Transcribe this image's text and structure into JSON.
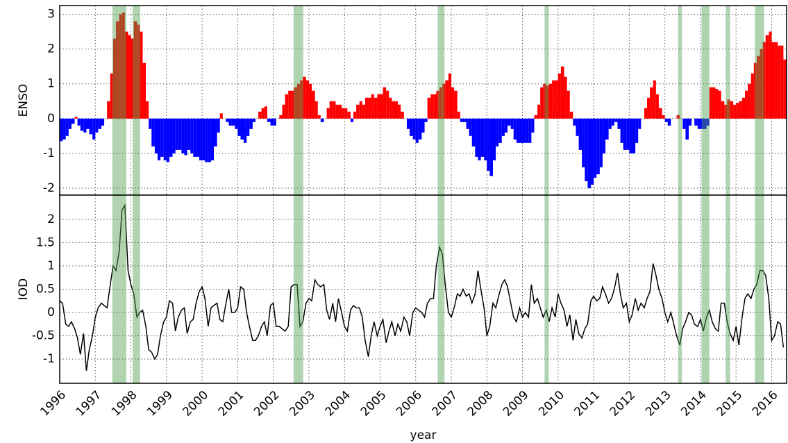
{
  "chart_data": [
    {
      "type": "bar",
      "ylabel": "ENSO",
      "x": [
        1996,
        1996.08,
        1996.17,
        1996.25,
        1996.33,
        1996.42,
        1996.5,
        1996.58,
        1996.67,
        1996.75,
        1996.83,
        1996.92,
        1997,
        1997.08,
        1997.17,
        1997.25,
        1997.33,
        1997.42,
        1997.5,
        1997.58,
        1997.67,
        1997.75,
        1997.83,
        1997.92,
        1998,
        1998.08,
        1998.17,
        1998.25,
        1998.33,
        1998.42,
        1998.5,
        1998.58,
        1998.67,
        1998.75,
        1998.83,
        1998.92,
        1999,
        1999.08,
        1999.17,
        1999.25,
        1999.33,
        1999.42,
        1999.5,
        1999.58,
        1999.67,
        1999.75,
        1999.83,
        1999.92,
        2000,
        2000.08,
        2000.17,
        2000.25,
        2000.33,
        2000.42,
        2000.5,
        2000.58,
        2000.67,
        2000.75,
        2000.83,
        2000.92,
        2001,
        2001.08,
        2001.17,
        2001.25,
        2001.33,
        2001.42,
        2001.5,
        2001.58,
        2001.67,
        2001.75,
        2001.83,
        2001.92,
        2002,
        2002.08,
        2002.17,
        2002.25,
        2002.33,
        2002.42,
        2002.5,
        2002.58,
        2002.67,
        2002.75,
        2002.83,
        2002.92,
        2003,
        2003.08,
        2003.17,
        2003.25,
        2003.33,
        2003.42,
        2003.5,
        2003.58,
        2003.67,
        2003.75,
        2003.83,
        2003.92,
        2004,
        2004.08,
        2004.17,
        2004.25,
        2004.33,
        2004.42,
        2004.5,
        2004.58,
        2004.67,
        2004.75,
        2004.83,
        2004.92,
        2005,
        2005.08,
        2005.17,
        2005.25,
        2005.33,
        2005.42,
        2005.5,
        2005.58,
        2005.67,
        2005.75,
        2005.83,
        2005.92,
        2006,
        2006.08,
        2006.17,
        2006.25,
        2006.33,
        2006.42,
        2006.5,
        2006.58,
        2006.67,
        2006.75,
        2006.83,
        2006.92,
        2007,
        2007.08,
        2007.17,
        2007.25,
        2007.33,
        2007.42,
        2007.5,
        2007.58,
        2007.67,
        2007.75,
        2007.83,
        2007.92,
        2008,
        2008.08,
        2008.17,
        2008.25,
        2008.33,
        2008.42,
        2008.5,
        2008.58,
        2008.67,
        2008.75,
        2008.83,
        2008.92,
        2009,
        2009.08,
        2009.17,
        2009.25,
        2009.33,
        2009.42,
        2009.5,
        2009.58,
        2009.67,
        2009.75,
        2009.83,
        2009.92,
        2010,
        2010.08,
        2010.17,
        2010.25,
        2010.33,
        2010.42,
        2010.5,
        2010.58,
        2010.67,
        2010.75,
        2010.83,
        2010.92,
        2011,
        2011.08,
        2011.17,
        2011.25,
        2011.33,
        2011.42,
        2011.5,
        2011.58,
        2011.67,
        2011.75,
        2011.83,
        2011.92,
        2012,
        2012.08,
        2012.17,
        2012.25,
        2012.33,
        2012.42,
        2012.5,
        2012.58,
        2012.67,
        2012.75,
        2012.83,
        2012.92,
        2013,
        2013.08,
        2013.17,
        2013.25,
        2013.33,
        2013.42,
        2013.5,
        2013.58,
        2013.67,
        2013.75,
        2013.83,
        2013.92,
        2014,
        2014.08,
        2014.17,
        2014.25,
        2014.33,
        2014.42,
        2014.5,
        2014.58,
        2014.67,
        2014.75,
        2014.83,
        2014.92,
        2015,
        2015.08,
        2015.17,
        2015.25,
        2015.33,
        2015.42,
        2015.5,
        2015.58,
        2015.67,
        2015.75,
        2015.83,
        2015.92,
        2016,
        2016.08,
        2016.17,
        2016.25,
        2016.33
      ],
      "values": [
        -0.65,
        -0.6,
        -0.5,
        -0.3,
        -0.15,
        0.05,
        -0.2,
        -0.35,
        -0.4,
        -0.3,
        -0.45,
        -0.6,
        -0.4,
        -0.3,
        -0.2,
        0.0,
        0.5,
        1.3,
        2.3,
        2.8,
        3.0,
        3.05,
        2.5,
        2.4,
        2.3,
        2.8,
        2.7,
        2.5,
        1.6,
        0.5,
        -0.3,
        -0.8,
        -1.0,
        -1.2,
        -1.1,
        -1.2,
        -1.25,
        -1.1,
        -1.0,
        -0.9,
        -0.9,
        -1.0,
        -1.05,
        -0.9,
        -1.0,
        -1.1,
        -1.1,
        -1.2,
        -1.2,
        -1.25,
        -1.25,
        -1.2,
        -0.8,
        -0.4,
        0.15,
        0.0,
        -0.1,
        -0.2,
        -0.2,
        -0.3,
        -0.5,
        -0.6,
        -0.7,
        -0.5,
        -0.3,
        -0.1,
        0.0,
        0.2,
        0.3,
        0.35,
        -0.1,
        -0.2,
        -0.2,
        0.0,
        0.1,
        0.4,
        0.7,
        0.8,
        0.8,
        0.9,
        1.0,
        1.1,
        1.2,
        1.1,
        1.0,
        0.8,
        0.5,
        0.1,
        -0.1,
        0.0,
        0.3,
        0.5,
        0.5,
        0.4,
        0.4,
        0.3,
        0.3,
        0.2,
        -0.1,
        0.2,
        0.4,
        0.5,
        0.4,
        0.6,
        0.6,
        0.7,
        0.6,
        0.7,
        0.7,
        0.9,
        0.8,
        0.6,
        0.5,
        0.5,
        0.4,
        0.2,
        0.0,
        -0.3,
        -0.5,
        -0.6,
        -0.7,
        -0.6,
        -0.4,
        -0.1,
        0.6,
        0.7,
        0.7,
        0.8,
        0.9,
        1.0,
        1.1,
        1.3,
        0.9,
        0.8,
        0.2,
        -0.1,
        -0.1,
        -0.3,
        -0.5,
        -0.8,
        -1.1,
        -1.2,
        -1.1,
        -1.2,
        -1.5,
        -1.65,
        -1.2,
        -0.8,
        -0.7,
        -0.5,
        -0.4,
        -0.2,
        -0.3,
        -0.6,
        -0.7,
        -0.7,
        -0.7,
        -0.7,
        -0.7,
        -0.4,
        0.1,
        0.4,
        0.9,
        1.0,
        0.95,
        1.0,
        1.1,
        1.1,
        1.3,
        1.5,
        1.2,
        0.8,
        0.2,
        -0.2,
        -0.5,
        -0.9,
        -1.4,
        -1.8,
        -2.0,
        -1.9,
        -1.7,
        -1.6,
        -1.4,
        -1.0,
        -0.6,
        -0.3,
        -0.2,
        -0.1,
        -0.3,
        -0.7,
        -0.9,
        -0.9,
        -1.0,
        -1.0,
        -0.7,
        -0.3,
        0.0,
        0.3,
        0.6,
        0.9,
        1.1,
        0.7,
        0.3,
        0.1,
        -0.1,
        -0.2,
        0.0,
        0.0,
        0.1,
        0.0,
        -0.3,
        -0.6,
        -0.2,
        0.0,
        -0.2,
        -0.3,
        -0.3,
        -0.3,
        -0.2,
        0.9,
        0.9,
        0.85,
        0.8,
        0.5,
        0.4,
        0.55,
        0.5,
        0.4,
        0.45,
        0.5,
        0.6,
        0.8,
        1.0,
        1.3,
        1.6,
        1.8,
        2.0,
        2.2,
        2.4,
        2.5,
        2.2,
        2.2,
        2.1,
        2.1,
        1.7
      ],
      "positive_color": "#ff0000",
      "negative_color": "#0000ff",
      "xlim": [
        1996,
        2016.42
      ],
      "xticks": [
        1996,
        1997,
        1998,
        1999,
        2000,
        2001,
        2002,
        2003,
        2004,
        2005,
        2006,
        2007,
        2008,
        2009,
        2010,
        2011,
        2012,
        2013,
        2014,
        2015,
        2016
      ],
      "ylim": [
        -2.2,
        3.25
      ],
      "yticks": [
        -2,
        -1,
        0,
        1,
        2,
        3
      ],
      "grid": true,
      "highlights": [
        [
          1997.48,
          1997.87
        ],
        [
          1998.05,
          1998.26
        ],
        [
          2002.57,
          2002.84
        ],
        [
          2006.62,
          2006.81
        ],
        [
          2009.62,
          2009.74
        ],
        [
          2013.37,
          2013.48
        ],
        [
          2014.03,
          2014.25
        ],
        [
          2014.71,
          2014.83
        ],
        [
          2015.53,
          2015.79
        ]
      ],
      "highlight_color": "#4f9f4f"
    },
    {
      "type": "line",
      "ylabel": "IOD",
      "xlabel": "year",
      "color": "#000000",
      "x": [
        1996,
        1996.08,
        1996.17,
        1996.25,
        1996.33,
        1996.42,
        1996.5,
        1996.58,
        1996.67,
        1996.75,
        1996.83,
        1996.92,
        1997,
        1997.08,
        1997.17,
        1997.25,
        1997.33,
        1997.42,
        1997.5,
        1997.58,
        1997.67,
        1997.75,
        1997.83,
        1997.92,
        1998,
        1998.08,
        1998.17,
        1998.25,
        1998.33,
        1998.42,
        1998.5,
        1998.58,
        1998.67,
        1998.75,
        1998.83,
        1998.92,
        1999,
        1999.08,
        1999.17,
        1999.25,
        1999.33,
        1999.42,
        1999.5,
        1999.58,
        1999.67,
        1999.75,
        1999.83,
        1999.92,
        2000,
        2000.08,
        2000.17,
        2000.25,
        2000.33,
        2000.42,
        2000.5,
        2000.58,
        2000.67,
        2000.75,
        2000.83,
        2000.92,
        2001,
        2001.08,
        2001.17,
        2001.25,
        2001.33,
        2001.42,
        2001.5,
        2001.58,
        2001.67,
        2001.75,
        2001.83,
        2001.92,
        2002,
        2002.08,
        2002.17,
        2002.25,
        2002.33,
        2002.42,
        2002.5,
        2002.58,
        2002.67,
        2002.75,
        2002.83,
        2002.92,
        2003,
        2003.08,
        2003.17,
        2003.25,
        2003.33,
        2003.42,
        2003.5,
        2003.58,
        2003.67,
        2003.75,
        2003.83,
        2003.92,
        2004,
        2004.08,
        2004.17,
        2004.25,
        2004.33,
        2004.42,
        2004.5,
        2004.58,
        2004.67,
        2004.75,
        2004.83,
        2004.92,
        2005,
        2005.08,
        2005.17,
        2005.25,
        2005.33,
        2005.42,
        2005.5,
        2005.58,
        2005.67,
        2005.75,
        2005.83,
        2005.92,
        2006,
        2006.08,
        2006.17,
        2006.25,
        2006.33,
        2006.42,
        2006.5,
        2006.58,
        2006.67,
        2006.75,
        2006.83,
        2006.92,
        2007,
        2007.08,
        2007.17,
        2007.25,
        2007.33,
        2007.42,
        2007.5,
        2007.58,
        2007.67,
        2007.75,
        2007.83,
        2007.92,
        2008,
        2008.08,
        2008.17,
        2008.25,
        2008.33,
        2008.42,
        2008.5,
        2008.58,
        2008.67,
        2008.75,
        2008.83,
        2008.92,
        2009,
        2009.08,
        2009.17,
        2009.25,
        2009.33,
        2009.42,
        2009.5,
        2009.58,
        2009.67,
        2009.75,
        2009.83,
        2009.92,
        2010,
        2010.08,
        2010.17,
        2010.25,
        2010.33,
        2010.42,
        2010.5,
        2010.58,
        2010.67,
        2010.75,
        2010.83,
        2010.92,
        2011,
        2011.08,
        2011.17,
        2011.25,
        2011.33,
        2011.42,
        2011.5,
        2011.58,
        2011.67,
        2011.75,
        2011.83,
        2011.92,
        2012,
        2012.08,
        2012.17,
        2012.25,
        2012.33,
        2012.42,
        2012.5,
        2012.58,
        2012.67,
        2012.75,
        2012.83,
        2012.92,
        2013,
        2013.08,
        2013.17,
        2013.25,
        2013.33,
        2013.42,
        2013.5,
        2013.58,
        2013.67,
        2013.75,
        2013.83,
        2013.92,
        2014,
        2014.08,
        2014.17,
        2014.25,
        2014.33,
        2014.42,
        2014.5,
        2014.58,
        2014.67,
        2014.75,
        2014.83,
        2014.92,
        2015,
        2015.08,
        2015.17,
        2015.25,
        2015.33,
        2015.42,
        2015.5,
        2015.58,
        2015.67,
        2015.75,
        2015.83,
        2015.92,
        2016,
        2016.08,
        2016.17,
        2016.25,
        2016.33
      ],
      "values": [
        0.25,
        0.2,
        -0.25,
        -0.3,
        -0.2,
        -0.35,
        -0.55,
        -0.9,
        -0.45,
        -1.25,
        -0.8,
        -0.5,
        -0.1,
        0.1,
        0.2,
        0.15,
        0.1,
        0.6,
        1.0,
        0.9,
        1.3,
        2.2,
        2.3,
        0.9,
        0.6,
        0.4,
        -0.1,
        0.0,
        0.05,
        -0.3,
        -0.8,
        -0.85,
        -1.0,
        -0.9,
        -0.5,
        -0.2,
        -0.1,
        0.25,
        0.2,
        -0.4,
        -0.1,
        0.05,
        0.1,
        -0.45,
        -0.2,
        -0.15,
        0.2,
        0.45,
        0.55,
        0.3,
        -0.3,
        0.1,
        0.15,
        0.2,
        -0.15,
        -0.2,
        0.2,
        0.5,
        0.0,
        0.0,
        0.1,
        0.55,
        0.5,
        0.0,
        -0.3,
        -0.6,
        -0.6,
        -0.5,
        -0.3,
        -0.2,
        -0.5,
        0.15,
        0.2,
        -0.3,
        -0.3,
        -0.35,
        -0.4,
        -0.3,
        0.55,
        0.6,
        0.6,
        -0.3,
        -0.2,
        0.2,
        0.3,
        0.25,
        0.7,
        0.6,
        0.55,
        0.6,
        0.05,
        -0.15,
        0.2,
        -0.2,
        0.3,
        0.0,
        -0.3,
        -0.4,
        0.05,
        0.15,
        0.1,
        0.1,
        -0.1,
        -0.6,
        -0.95,
        -0.5,
        -0.2,
        -0.5,
        -0.3,
        -0.15,
        -0.65,
        -0.4,
        -0.2,
        -0.5,
        -0.25,
        -0.4,
        -0.1,
        -0.2,
        -0.5,
        0.0,
        0.1,
        0.05,
        0.0,
        -0.1,
        0.2,
        0.3,
        0.3,
        1.0,
        1.4,
        1.25,
        0.6,
        0.0,
        -0.1,
        0.1,
        0.4,
        0.35,
        0.5,
        0.35,
        0.4,
        0.2,
        0.4,
        0.9,
        0.5,
        0.1,
        -0.5,
        -0.3,
        0.2,
        0.1,
        0.35,
        0.6,
        0.7,
        0.55,
        0.2,
        -0.1,
        -0.2,
        0.1,
        -0.1,
        0.0,
        -0.1,
        0.6,
        0.2,
        0.3,
        0.1,
        -0.1,
        0.05,
        -0.2,
        0.1,
        -0.1,
        0.4,
        0.2,
        0.05,
        -0.3,
        -0.05,
        -0.6,
        -0.15,
        -0.45,
        -0.55,
        -0.35,
        -0.25,
        0.25,
        0.35,
        0.25,
        0.3,
        0.55,
        0.4,
        0.2,
        0.3,
        0.5,
        0.85,
        0.4,
        0.1,
        0.2,
        -0.2,
        -0.05,
        0.3,
        0.05,
        0.2,
        0.1,
        0.3,
        0.45,
        1.05,
        0.8,
        0.5,
        0.3,
        0.0,
        -0.2,
        0.0,
        -0.25,
        -0.5,
        -0.7,
        -0.35,
        -0.2,
        0.0,
        -0.05,
        -0.25,
        -0.3,
        -0.15,
        -0.4,
        -0.1,
        0.05,
        -0.2,
        -0.35,
        -0.4,
        0.2,
        0.2,
        -0.2,
        -0.45,
        -0.6,
        -0.3,
        -0.7,
        -0.1,
        0.3,
        0.4,
        0.3,
        0.5,
        0.6,
        0.9,
        0.9,
        0.8,
        0.3,
        -0.6,
        -0.5,
        -0.2,
        -0.25,
        -0.75
      ],
      "xlim": [
        1996,
        2016.42
      ],
      "xticks": [
        1996,
        1997,
        1998,
        1999,
        2000,
        2001,
        2002,
        2003,
        2004,
        2005,
        2006,
        2007,
        2008,
        2009,
        2010,
        2011,
        2012,
        2013,
        2014,
        2015,
        2016
      ],
      "ylim": [
        -1.52,
        2.52
      ],
      "yticks": [
        -1,
        -0.5,
        0,
        0.5,
        1,
        1.5,
        2
      ],
      "grid": true,
      "highlights": [
        [
          1997.48,
          1997.87
        ],
        [
          1998.05,
          1998.26
        ],
        [
          2002.57,
          2002.84
        ],
        [
          2006.62,
          2006.81
        ],
        [
          2009.62,
          2009.74
        ],
        [
          2013.37,
          2013.48
        ],
        [
          2014.03,
          2014.25
        ],
        [
          2014.71,
          2014.83
        ],
        [
          2015.53,
          2015.79
        ]
      ],
      "highlight_color": "#4f9f4f"
    }
  ]
}
